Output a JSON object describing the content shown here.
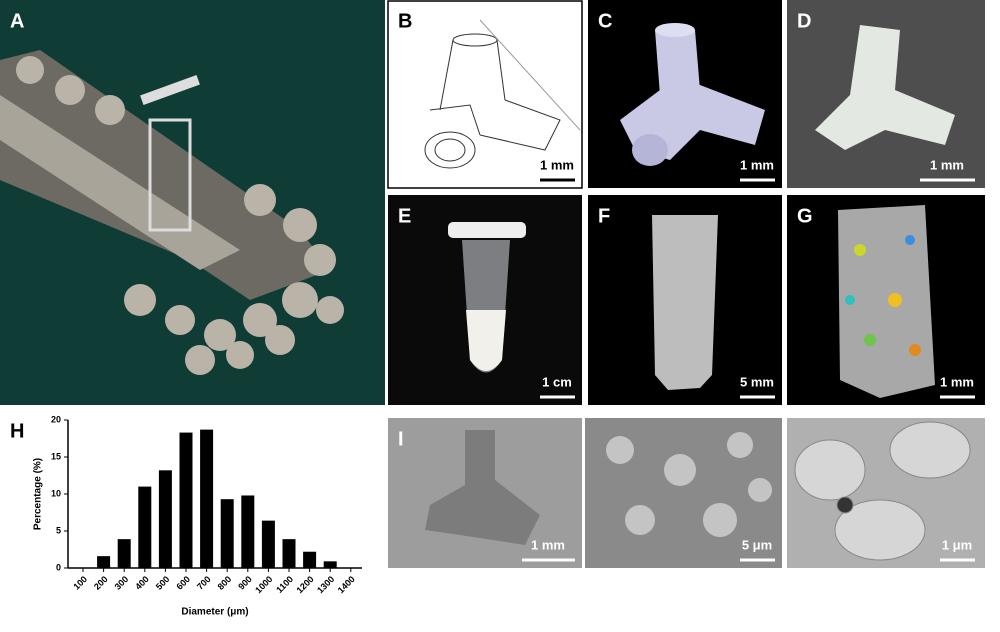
{
  "panels": [
    {
      "label": "A"
    },
    {
      "label": "B",
      "scale_bar": "1 mm"
    },
    {
      "label": "C",
      "scale_bar": "1 mm"
    },
    {
      "label": "D",
      "scale_bar": "1 mm"
    },
    {
      "label": "E",
      "scale_bar": "1 cm"
    },
    {
      "label": "F",
      "scale_bar": "5 mm"
    },
    {
      "label": "G",
      "scale_bar": "1 mm"
    },
    {
      "label": "I",
      "scale_bars": [
        "1 mm",
        "5 μm",
        "1 μm"
      ]
    }
  ],
  "chart_data": {
    "type": "bar",
    "panel_label": "H",
    "x_label": "Diameter (μm)",
    "y_label": "Percentage (%)",
    "categories": [
      "100",
      "200",
      "300",
      "400",
      "500",
      "600",
      "700",
      "800",
      "900",
      "1000",
      "1100",
      "1200",
      "1300",
      "1400"
    ],
    "values": [
      0,
      1.6,
      3.9,
      11,
      13.2,
      18.3,
      18.7,
      9.3,
      9.8,
      6.4,
      3.9,
      2.2,
      0.9,
      0
    ],
    "color": "#000000",
    "ylim": [
      0,
      20
    ],
    "yticks": [
      0,
      5,
      10,
      15,
      20
    ]
  }
}
